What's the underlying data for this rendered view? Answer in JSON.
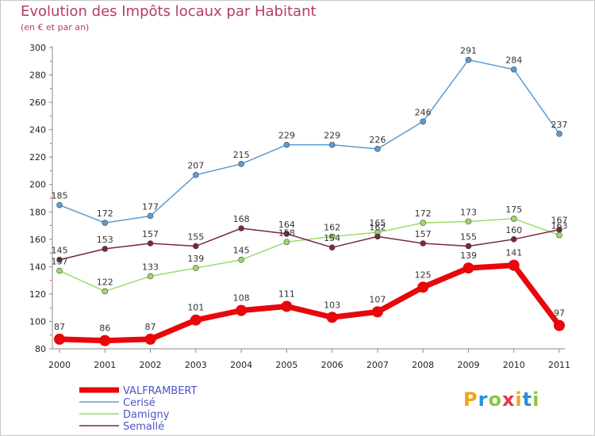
{
  "title": "Evolution des Impôts locaux par Habitant",
  "subtitle": "(en € et par an)",
  "logo": {
    "text": "Proxiti",
    "colors": [
      "#f2a51a",
      "#2b8fd6",
      "#8cc63e",
      "#e8334a",
      "#f2a51a",
      "#2b8fd6",
      "#8cc63e"
    ]
  },
  "chart_data": {
    "type": "line",
    "x": [
      "2000",
      "2001",
      "2002",
      "2003",
      "2004",
      "2005",
      "2006",
      "2007",
      "2008",
      "2009",
      "2010",
      "2011"
    ],
    "ylim": [
      80,
      300
    ],
    "yticks": [
      80,
      100,
      120,
      140,
      160,
      180,
      200,
      220,
      240,
      260,
      280,
      300
    ],
    "grid": false,
    "legend_position": "bottom-left",
    "series": [
      {
        "name": "VALFRAMBERT",
        "color": "#e8070b",
        "emphasis": true,
        "values": [
          87,
          86,
          87,
          101,
          108,
          111,
          103,
          107,
          125,
          139,
          141,
          97
        ]
      },
      {
        "name": "Cerisé",
        "color": "#5b9bd2",
        "values": [
          185,
          172,
          177,
          207,
          215,
          229,
          229,
          226,
          246,
          291,
          284,
          237
        ]
      },
      {
        "name": "Damigny",
        "color": "#9bdb6a",
        "values": [
          137,
          122,
          133,
          139,
          145,
          158,
          162,
          165,
          172,
          173,
          175,
          163
        ]
      },
      {
        "name": "Semallé",
        "color": "#7a2a35",
        "values": [
          145,
          153,
          157,
          155,
          168,
          164,
          154,
          162,
          157,
          155,
          160,
          167
        ]
      }
    ]
  }
}
